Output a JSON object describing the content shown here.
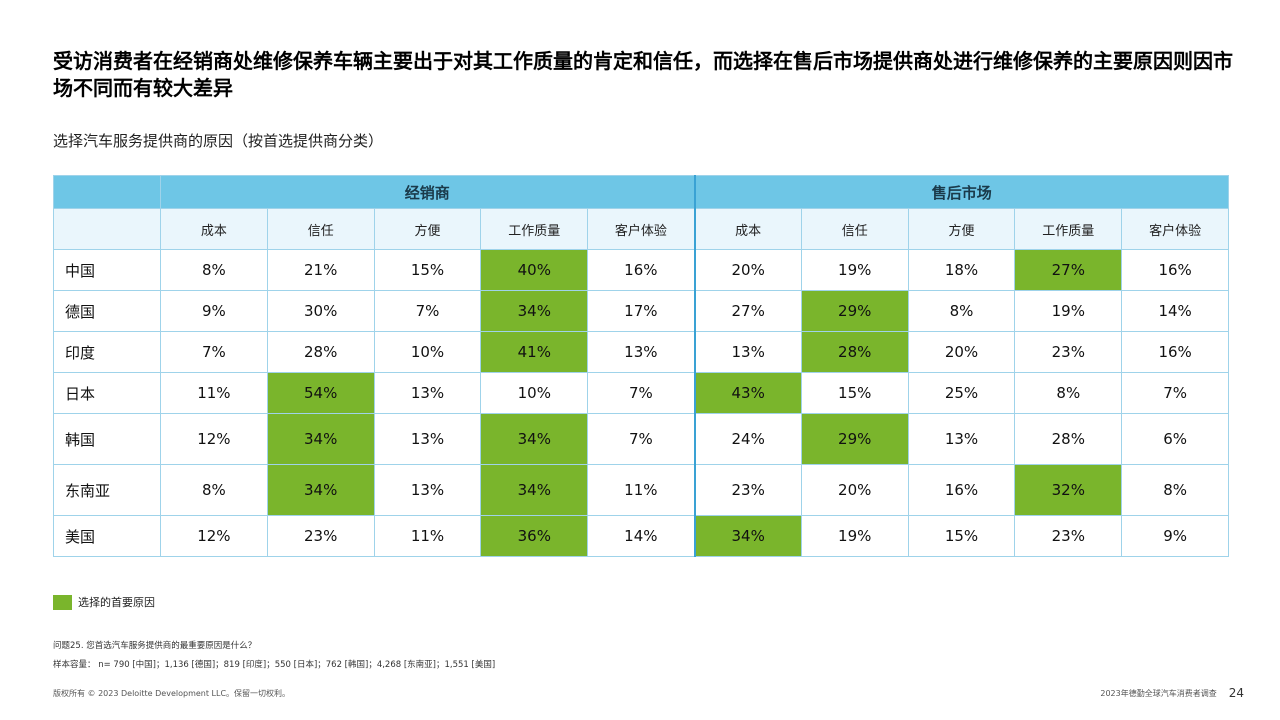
{
  "title": "受访消费者在经销商处维修保养车辆主要出于对其工作质量的肯定和信任，而选择在售后市场提供商处进行维修保养的主要原因则因市场不同而有较大差异",
  "subtitle": "选择汽车服务提供商的原因（按首选提供商分类）",
  "groups": [
    "经销商",
    "售后市场"
  ],
  "columns": [
    "成本",
    "信任",
    "方便",
    "工作质量",
    "客户体验",
    "成本",
    "信任",
    "方便",
    "工作质量",
    "客户体验"
  ],
  "rows": [
    {
      "country": "中国",
      "values": [
        "8%",
        "21%",
        "15%",
        "40%",
        "16%",
        "20%",
        "19%",
        "18%",
        "27%",
        "16%"
      ],
      "highlight": [
        3,
        8
      ]
    },
    {
      "country": "德国",
      "values": [
        "9%",
        "30%",
        "7%",
        "34%",
        "17%",
        "27%",
        "29%",
        "8%",
        "19%",
        "14%"
      ],
      "highlight": [
        3,
        6
      ]
    },
    {
      "country": "印度",
      "values": [
        "7%",
        "28%",
        "10%",
        "41%",
        "13%",
        "13%",
        "28%",
        "20%",
        "23%",
        "16%"
      ],
      "highlight": [
        3,
        6
      ]
    },
    {
      "country": "日本",
      "values": [
        "11%",
        "54%",
        "13%",
        "10%",
        "7%",
        "43%",
        "15%",
        "25%",
        "8%",
        "7%"
      ],
      "highlight": [
        1,
        5
      ]
    },
    {
      "country": "韩国",
      "values": [
        "12%",
        "34%",
        "13%",
        "34%",
        "7%",
        "24%",
        "29%",
        "13%",
        "28%",
        "6%"
      ],
      "highlight": [
        1,
        3,
        6
      ]
    },
    {
      "country": "东南亚",
      "values": [
        "8%",
        "34%",
        "13%",
        "34%",
        "11%",
        "23%",
        "20%",
        "16%",
        "32%",
        "8%"
      ],
      "highlight": [
        1,
        3,
        8
      ]
    },
    {
      "country": "美国",
      "values": [
        "12%",
        "23%",
        "11%",
        "36%",
        "14%",
        "34%",
        "19%",
        "15%",
        "23%",
        "9%"
      ],
      "highlight": [
        3,
        5
      ]
    }
  ],
  "colors": {
    "highlight": "#7ab52c",
    "header": "#6ec6e6",
    "subheader": "#eaf6fc"
  },
  "legend": {
    "label": "选择的首要原因"
  },
  "notes": {
    "question": "问题25. 您首选汽车服务提供商的最重要原因是什么？",
    "sample": "样本容量： n= 790 [中国]；1,136 [德国]；819 [印度]；550 [日本]；762 [韩国]；4,268 [东南亚]；1,551 [美国]"
  },
  "footer": {
    "copyright": "版权所有 © 2023 Deloitte Development LLC。保留一切权利。",
    "source": "2023年德勤全球汽车消费者调查",
    "page": "24"
  }
}
